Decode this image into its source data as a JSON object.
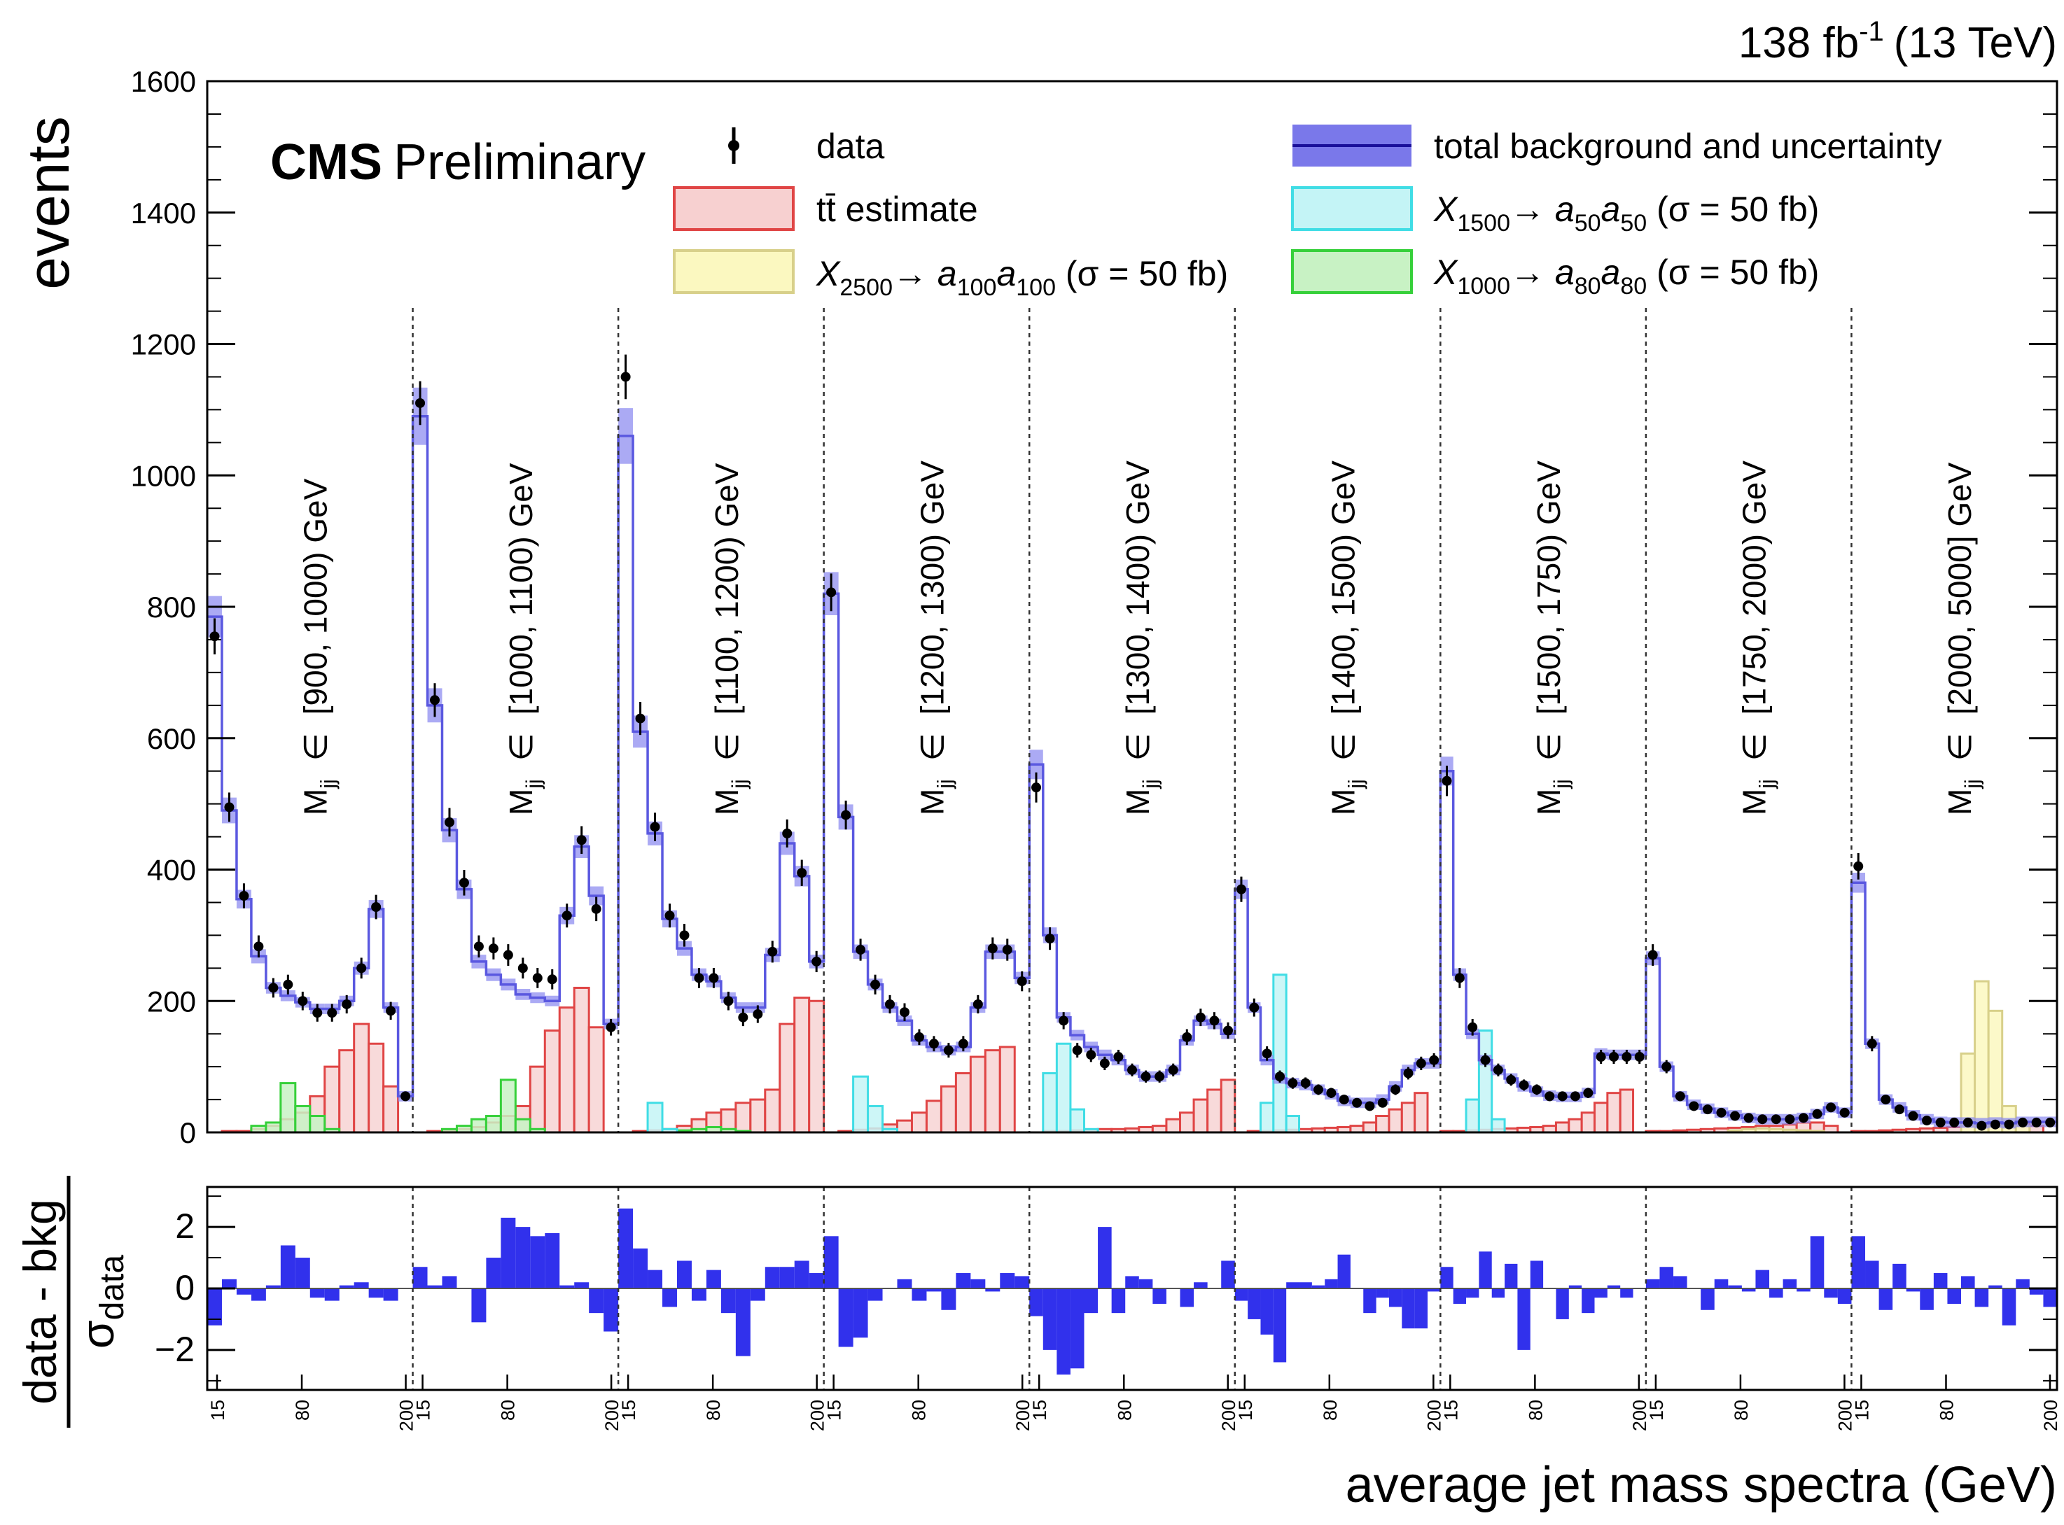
{
  "chart_data": {
    "type": "bar",
    "header": {
      "lumi": "138 fb",
      "lumi_exp": "-1",
      "energy": "(13 TeV)"
    },
    "watermark": {
      "bold": "CMS",
      "normal": "Preliminary"
    },
    "top_panel": {
      "ylabel": "events",
      "ylim": [
        0,
        1600
      ],
      "yticks": [
        "0",
        "200",
        "400",
        "600",
        "800",
        "1000",
        "1200",
        "1400",
        "1600"
      ]
    },
    "ratio_panel": {
      "ylabel_num": "data - bkg",
      "ylabel_den": "σ",
      "ylabel_den_sub": "data",
      "ylim": [
        -3.3,
        3.3
      ],
      "yticks": [
        "2",
        "0",
        "−2"
      ]
    },
    "xlabel": "average jet mass spectra (GeV)",
    "sub_tick_labels": [
      "15",
      "80",
      "200"
    ],
    "mjj_label": {
      "main": "M",
      "sub": "jj",
      "symbol": "∈"
    },
    "mjj_bins": [
      "[900, 1000) GeV",
      "[1000, 1100) GeV",
      "[1100, 1200) GeV",
      "[1200, 1300) GeV",
      "[1300, 1400) GeV",
      "[1400, 1500) GeV",
      "[1500, 1750) GeV",
      "[1750, 2000) GeV",
      "[2000, 5000] GeV"
    ],
    "legend": [
      {
        "key": "data",
        "label": "data",
        "style": "marker"
      },
      {
        "key": "tt",
        "label": "tt̄ estimate",
        "style": "fill",
        "fill": "#f7d0d0",
        "stroke": "#e04545"
      },
      {
        "key": "x2500",
        "label_main": "X",
        "label_sub1": "2500",
        "label_arrow": "→ ",
        "label_a": "a",
        "label_sub2": "100",
        "label_a2": "a",
        "label_sub3": "100",
        "label_tail": " (σ = 50 fb)",
        "style": "fill",
        "fill": "#fbf8c0",
        "stroke": "#d8d08a"
      },
      {
        "key": "total",
        "label": "total background and uncertainty",
        "style": "band",
        "fill": "#7a78ea",
        "stroke": "#1a0f9a"
      },
      {
        "key": "x1500",
        "label_main": "X",
        "label_sub1": "1500",
        "label_arrow": "→ ",
        "label_a": "a",
        "label_sub2": "50",
        "label_a2": "a",
        "label_sub3": "50",
        "label_tail": " (σ = 50 fb)",
        "style": "fill",
        "fill": "#c4f4f6",
        "stroke": "#40dde5"
      },
      {
        "key": "x1000",
        "label_main": "X",
        "label_sub1": "1000",
        "label_arrow": "→ ",
        "label_a": "a",
        "label_sub2": "80",
        "label_a2": "a",
        "label_sub3": "80",
        "label_tail": " (σ = 50 fb)",
        "style": "fill",
        "fill": "#c8f2c4",
        "stroke": "#36d03a"
      }
    ],
    "colors": {
      "tt": "#e04545",
      "tt_fill": "#f7d4d4",
      "total": "#5a58e0",
      "band": "#8f8df0",
      "x1500": "#40dde5",
      "x1500_fill": "#c4f4f6",
      "x2500": "#d8d08a",
      "x2500_fill": "#fbf8c0",
      "x1000": "#36d03a",
      "x1000_fill": "#c8f2c4",
      "pull": "#3131ec"
    },
    "series": [
      {
        "name": "data",
        "values": [
          755,
          495,
          360,
          283,
          220,
          225,
          200,
          182,
          182,
          195,
          250,
          343,
          185,
          55,
          1110,
          658,
          472,
          380,
          283,
          280,
          270,
          250,
          235,
          233,
          330,
          445,
          340,
          160,
          1150,
          630,
          465,
          330,
          300,
          235,
          235,
          200,
          175,
          180,
          275,
          455,
          395,
          260,
          822,
          483,
          278,
          225,
          195,
          183,
          145,
          135,
          125,
          135,
          195,
          280,
          278,
          230,
          525,
          295,
          170,
          125,
          118,
          105,
          115,
          95,
          85,
          85,
          95,
          145,
          175,
          170,
          155,
          370,
          190,
          120,
          85,
          75,
          75,
          65,
          60,
          50,
          45,
          40,
          45,
          65,
          90,
          105,
          110,
          535,
          235,
          160,
          110,
          95,
          80,
          72,
          65,
          55,
          55,
          55,
          60,
          115,
          115,
          115,
          115,
          270,
          100,
          55,
          40,
          35,
          30,
          25,
          22,
          20,
          20,
          20,
          22,
          28,
          38,
          30,
          405,
          135,
          50,
          35,
          25,
          18,
          15,
          15,
          15,
          10,
          12,
          12,
          15,
          15,
          15
        ]
      },
      {
        "name": "total background and uncertainty",
        "values": [
          785,
          490,
          355,
          268,
          220,
          208,
          198,
          188,
          188,
          200,
          250,
          340,
          190,
          55,
          1090,
          650,
          460,
          370,
          260,
          240,
          225,
          210,
          205,
          200,
          330,
          435,
          360,
          165,
          1060,
          610,
          455,
          325,
          280,
          240,
          230,
          205,
          190,
          190,
          270,
          440,
          390,
          260,
          820,
          480,
          275,
          225,
          190,
          170,
          140,
          130,
          125,
          130,
          190,
          275,
          275,
          235,
          560,
          300,
          175,
          148,
          130,
          118,
          110,
          95,
          85,
          85,
          95,
          140,
          170,
          165,
          150,
          370,
          190,
          110,
          82,
          75,
          72,
          65,
          58,
          48,
          45,
          45,
          50,
          70,
          95,
          105,
          105,
          550,
          240,
          150,
          110,
          95,
          82,
          70,
          62,
          56,
          54,
          54,
          60,
          120,
          118,
          118,
          118,
          265,
          100,
          55,
          42,
          36,
          30,
          26,
          22,
          20,
          20,
          20,
          22,
          28,
          38,
          30,
          380,
          135,
          50,
          38,
          26,
          20,
          16,
          15,
          15,
          14,
          15,
          14,
          16,
          16,
          16
        ]
      },
      {
        "name": "tt estimate",
        "values": [
          0,
          2,
          2,
          5,
          10,
          20,
          30,
          55,
          100,
          125,
          165,
          135,
          70,
          0,
          0,
          2,
          3,
          5,
          8,
          15,
          25,
          40,
          100,
          155,
          190,
          220,
          160,
          0,
          0,
          2,
          3,
          5,
          10,
          20,
          30,
          35,
          45,
          50,
          65,
          165,
          205,
          200,
          0,
          2,
          4,
          6,
          12,
          18,
          30,
          48,
          70,
          90,
          115,
          125,
          130,
          0,
          0,
          2,
          2,
          3,
          4,
          5,
          5,
          6,
          8,
          10,
          20,
          30,
          50,
          65,
          80,
          0,
          2,
          2,
          3,
          4,
          5,
          6,
          7,
          8,
          10,
          15,
          25,
          35,
          45,
          60,
          0,
          2,
          2,
          3,
          4,
          5,
          6,
          7,
          8,
          10,
          15,
          20,
          30,
          45,
          60,
          65,
          0,
          2,
          2,
          3,
          4,
          5,
          6,
          7,
          8,
          10,
          10,
          12,
          15,
          15,
          10,
          0,
          2,
          2,
          3,
          4,
          5,
          6,
          7,
          8,
          10,
          10,
          12,
          15,
          15,
          10
        ]
      },
      {
        "name": "X2500 → a100a100",
        "values": [
          0,
          0,
          0,
          0,
          0,
          0,
          0,
          0,
          0,
          0,
          0,
          0,
          0,
          0,
          0,
          0,
          0,
          0,
          0,
          0,
          0,
          0,
          0,
          0,
          0,
          0,
          0,
          0,
          0,
          0,
          0,
          0,
          0,
          0,
          0,
          0,
          0,
          0,
          0,
          0,
          0,
          0,
          0,
          0,
          0,
          0,
          0,
          0,
          0,
          0,
          0,
          0,
          0,
          0,
          0,
          0,
          0,
          0,
          0,
          0,
          0,
          0,
          0,
          0,
          0,
          0,
          0,
          0,
          0,
          0,
          0,
          0,
          0,
          0,
          0,
          0,
          0,
          0,
          0,
          0,
          0,
          0,
          0,
          0,
          0,
          0,
          0,
          0,
          0,
          0,
          0,
          0,
          0,
          0,
          0,
          0,
          0,
          0,
          0,
          0,
          0,
          0,
          0,
          0,
          0,
          0,
          0,
          0,
          0,
          3,
          5,
          6,
          5,
          4,
          3,
          2,
          0,
          0,
          0,
          0,
          0,
          0,
          0,
          0,
          0,
          0,
          120,
          230,
          185,
          40,
          10,
          0,
          0
        ]
      },
      {
        "name": "X1500 → a50a50",
        "values": [
          0,
          0,
          0,
          0,
          0,
          0,
          0,
          0,
          0,
          0,
          0,
          0,
          0,
          0,
          0,
          0,
          0,
          0,
          0,
          0,
          0,
          0,
          0,
          0,
          0,
          0,
          0,
          0,
          0,
          0,
          45,
          5,
          0,
          0,
          0,
          0,
          0,
          0,
          0,
          0,
          0,
          0,
          0,
          0,
          85,
          40,
          5,
          0,
          0,
          0,
          0,
          0,
          0,
          0,
          0,
          0,
          0,
          90,
          135,
          35,
          5,
          0,
          0,
          0,
          0,
          0,
          0,
          0,
          0,
          0,
          0,
          0,
          0,
          45,
          240,
          25,
          0,
          0,
          0,
          0,
          0,
          0,
          0,
          0,
          0,
          0,
          0,
          0,
          0,
          50,
          155,
          20,
          0,
          0,
          0,
          0,
          0,
          0,
          0,
          0,
          0,
          0,
          0,
          0,
          0,
          0,
          0,
          0,
          0,
          0,
          0,
          0,
          0,
          0,
          0,
          0,
          0,
          0,
          0,
          0,
          0,
          0,
          0,
          0,
          0,
          0,
          0,
          0,
          0,
          0,
          0,
          0,
          0
        ]
      },
      {
        "name": "X1000 → a80a80",
        "values": [
          0,
          0,
          0,
          10,
          15,
          75,
          40,
          25,
          5,
          0,
          0,
          0,
          0,
          0,
          0,
          0,
          5,
          10,
          20,
          25,
          80,
          20,
          5,
          0,
          0,
          0,
          0,
          0,
          0,
          0,
          0,
          0,
          3,
          5,
          8,
          5,
          2,
          0,
          0,
          0,
          0,
          0,
          0,
          0,
          0,
          0,
          0,
          0,
          0,
          0,
          0,
          0,
          0,
          0,
          0,
          0,
          0,
          0,
          0,
          0,
          0,
          0,
          0,
          0,
          0,
          0,
          0,
          0,
          0,
          0,
          0,
          0,
          0,
          0,
          0,
          0,
          0,
          0,
          0,
          0,
          0,
          0,
          0,
          0,
          0,
          0,
          0,
          0,
          0,
          0,
          0,
          0,
          0,
          0,
          0,
          0,
          0,
          0,
          0,
          0,
          0,
          0,
          0,
          0,
          0,
          0,
          0,
          0,
          0,
          0,
          0,
          0,
          0,
          0,
          0,
          0,
          0,
          0,
          0,
          0,
          0,
          0,
          0,
          0,
          0,
          0,
          0,
          0,
          0,
          0,
          0,
          0,
          0
        ]
      },
      {
        "name": "data - bkg / σdata",
        "values": [
          -1.2,
          0.3,
          -0.2,
          -0.4,
          0.1,
          1.4,
          1.0,
          -0.3,
          -0.4,
          0.1,
          0.2,
          -0.3,
          -0.4,
          0.0,
          0.7,
          0.1,
          0.4,
          0.0,
          -1.1,
          1.0,
          2.3,
          2.0,
          1.7,
          1.8,
          0.1,
          0.2,
          -0.8,
          -1.4,
          2.6,
          1.3,
          0.6,
          -0.6,
          0.9,
          -0.4,
          0.6,
          -0.8,
          -2.2,
          -0.4,
          0.7,
          0.7,
          0.9,
          0.5,
          1.7,
          -1.9,
          -1.6,
          -0.4,
          0.0,
          0.3,
          -0.4,
          -0.1,
          -0.7,
          0.5,
          0.3,
          -0.1,
          0.5,
          0.4,
          -0.9,
          -2.0,
          -2.8,
          -2.6,
          -0.8,
          2.0,
          -0.8,
          0.4,
          0.3,
          -0.5,
          0.0,
          -0.6,
          0.2,
          0.0,
          0.9,
          -0.4,
          -1.0,
          -1.5,
          -2.4,
          0.2,
          0.2,
          0.1,
          0.3,
          1.1,
          0.0,
          -0.8,
          -0.3,
          -0.6,
          -1.3,
          -1.3,
          -0.1,
          0.7,
          -0.5,
          -0.3,
          1.2,
          -0.3,
          0.8,
          -2.0,
          0.9,
          0.0,
          -1.0,
          0.1,
          -0.8,
          -0.3,
          0.1,
          -0.3,
          0.0,
          0.3,
          0.7,
          0.4,
          0.0,
          -0.7,
          0.3,
          0.1,
          -0.1,
          0.6,
          -0.3,
          0.3,
          -0.1,
          1.7,
          -0.3,
          -0.5,
          1.7,
          0.9,
          -0.7,
          0.8,
          -0.1,
          -0.7,
          0.5,
          -0.5,
          0.4,
          -0.6,
          0.1,
          -1.2,
          0.3,
          -0.2,
          -0.6
        ]
      }
    ],
    "sections": [
      14,
      14,
      14,
      14,
      15,
      16,
      16,
      15,
      15
    ]
  }
}
